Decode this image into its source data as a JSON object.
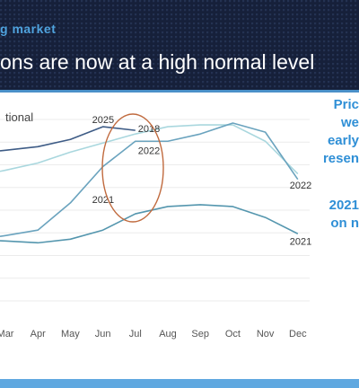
{
  "header": {
    "kicker": "g market",
    "headline": "ons are now at a high normal level"
  },
  "side_notes": {
    "line1": "Pric",
    "line2": "we",
    "line3": "early",
    "line4": "resen",
    "line5": "2021",
    "line6": "on n"
  },
  "chart_data": {
    "type": "line",
    "title": "",
    "legend_fragment": "tional",
    "xlabel": "",
    "ylabel": "",
    "categories": [
      "Mar",
      "Apr",
      "May",
      "Jun",
      "Jul",
      "Aug",
      "Sep",
      "Oct",
      "Nov",
      "Dec"
    ],
    "ylim": [
      0,
      100
    ],
    "grid": "horizontal",
    "series": [
      {
        "name": "2025",
        "color": "#3e5c86",
        "x": [
          "Mar",
          "Apr",
          "May",
          "Jun",
          "Jul"
        ],
        "values": [
          83,
          85,
          89,
          96,
          94
        ]
      },
      {
        "name": "2018",
        "color": "#a9d7de",
        "x": [
          "Mar",
          "Apr",
          "May",
          "Jun",
          "Jul",
          "Aug",
          "Sep",
          "Oct",
          "Nov",
          "Dec"
        ],
        "values": [
          72,
          76,
          82,
          87,
          92,
          96,
          97,
          97,
          88,
          70
        ]
      },
      {
        "name": "2022",
        "color": "#6aa3be",
        "x": [
          "Mar",
          "Apr",
          "May",
          "Jun",
          "Jul",
          "Aug",
          "Sep",
          "Oct",
          "Nov",
          "Dec"
        ],
        "values": [
          36,
          39,
          54,
          74,
          88,
          88,
          92,
          98,
          93,
          67
        ]
      },
      {
        "name": "2021",
        "color": "#5496ae",
        "x": [
          "Mar",
          "Apr",
          "May",
          "Jun",
          "Jul",
          "Aug",
          "Sep",
          "Oct",
          "Nov",
          "Dec"
        ],
        "values": [
          33,
          32,
          34,
          39,
          48,
          52,
          53,
          52,
          46,
          37
        ]
      }
    ],
    "labels": [
      {
        "text": "2025",
        "x": "Jun",
        "y": 98
      },
      {
        "text": "2018",
        "x": "Jul",
        "y": 93
      },
      {
        "text": "2022",
        "x": "Jul",
        "y": 81
      },
      {
        "text": "2021",
        "x": "Jun",
        "y": 54
      },
      {
        "text": "2022",
        "x": "Dec",
        "y": 62
      },
      {
        "text": "2021",
        "x": "Dec",
        "y": 31
      }
    ]
  }
}
